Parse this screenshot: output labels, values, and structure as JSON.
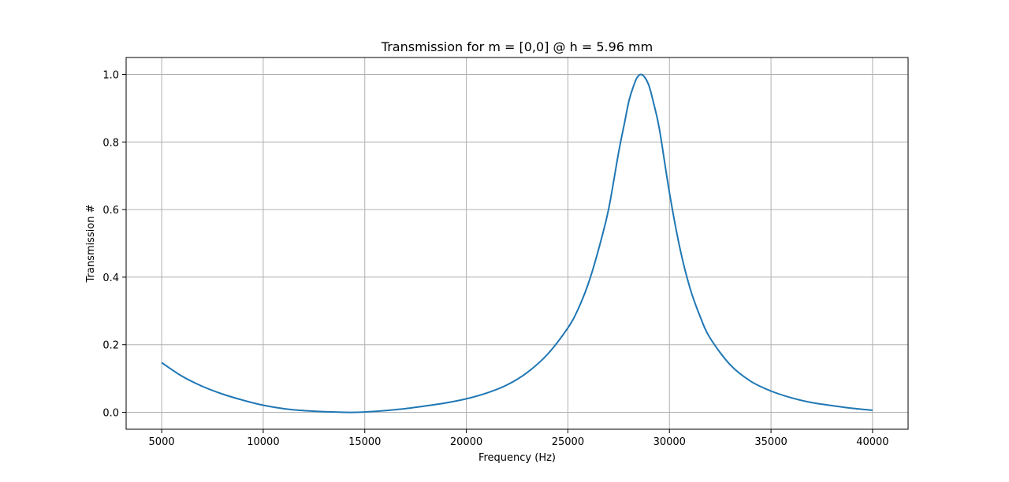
{
  "chart_data": {
    "type": "line",
    "title": "Transmission for m = [0,0] @ h = 5.96 mm",
    "xlabel": "Frequency (Hz)",
    "ylabel": "Transmission #",
    "xlim": [
      3250,
      41750
    ],
    "ylim": [
      -0.05,
      1.05
    ],
    "grid": true,
    "x_ticks": [
      5000,
      10000,
      15000,
      20000,
      25000,
      30000,
      35000,
      40000
    ],
    "x_tick_labels": [
      "5000",
      "10000",
      "15000",
      "20000",
      "25000",
      "30000",
      "35000",
      "40000"
    ],
    "y_ticks": [
      0.0,
      0.2,
      0.4,
      0.6,
      0.8,
      1.0
    ],
    "y_tick_labels": [
      "0.0",
      "0.2",
      "0.4",
      "0.6",
      "0.8",
      "1.0"
    ],
    "series": [
      {
        "color": "#1f77b4",
        "x": [
          5000,
          6000,
          7000,
          8000,
          9000,
          10000,
          11000,
          12000,
          13000,
          14000,
          14500,
          15000,
          16000,
          17000,
          18000,
          19000,
          20000,
          21000,
          22000,
          23000,
          24000,
          25000,
          25500,
          26000,
          26500,
          27000,
          27500,
          27800,
          28000,
          28200,
          28400,
          28600,
          28800,
          29000,
          29200,
          29500,
          30000,
          30500,
          31000,
          31500,
          32000,
          33000,
          34000,
          35000,
          36000,
          37000,
          38000,
          39000,
          40000
        ],
        "y": [
          0.147,
          0.107,
          0.077,
          0.054,
          0.036,
          0.021,
          0.011,
          0.005,
          0.002,
          0.0,
          0.0,
          0.001,
          0.005,
          0.011,
          0.019,
          0.028,
          0.04,
          0.057,
          0.081,
          0.118,
          0.172,
          0.25,
          0.305,
          0.38,
          0.48,
          0.6,
          0.77,
          0.86,
          0.92,
          0.96,
          0.99,
          1.0,
          0.99,
          0.965,
          0.92,
          0.84,
          0.65,
          0.49,
          0.37,
          0.285,
          0.22,
          0.14,
          0.092,
          0.063,
          0.043,
          0.029,
          0.02,
          0.012,
          0.006
        ]
      }
    ]
  }
}
